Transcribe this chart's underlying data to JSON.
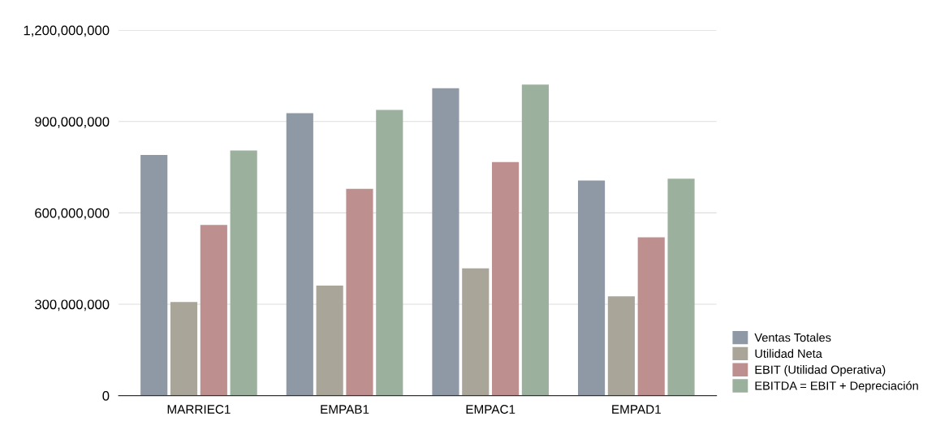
{
  "chart_data": {
    "type": "bar",
    "categories": [
      "MARRIEC1",
      "EMPAB1",
      "EMPAC1",
      "EMPAD1"
    ],
    "series": [
      {
        "name": "Ventas Totales",
        "color": "#8e99a5",
        "values": [
          790000000,
          927000000,
          1009000000,
          706000000
        ]
      },
      {
        "name": "Utilidad Neta",
        "color": "#a9a598",
        "values": [
          307000000,
          361000000,
          418000000,
          326000000
        ]
      },
      {
        "name": "EBIT (Utilidad Operativa)",
        "color": "#bd8f8f",
        "values": [
          560000000,
          679000000,
          767000000,
          520000000
        ]
      },
      {
        "name": "EBITDA = EBIT + Depreciación",
        "color": "#9bb09d",
        "values": [
          805000000,
          938000000,
          1021000000,
          712000000
        ]
      }
    ],
    "ylim": [
      0,
      1200000000
    ],
    "yticks": [
      {
        "value": 0,
        "label": "0"
      },
      {
        "value": 300000000,
        "label": "300,000,000"
      },
      {
        "value": 600000000,
        "label": "600,000,000"
      },
      {
        "value": 900000000,
        "label": "900,000,000"
      },
      {
        "value": 1200000000,
        "label": "1,200,000,000"
      }
    ],
    "grid": "y",
    "legend": "bottom right"
  }
}
